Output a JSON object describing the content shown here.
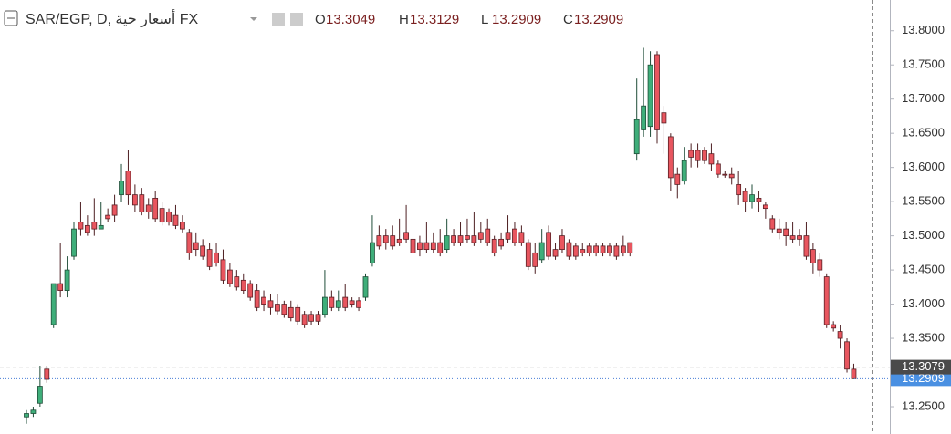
{
  "chart_data": {
    "type": "candlestick",
    "title": "SAR/EGP, D, أسعار حية FX",
    "legend": [
      {
        "name": "O",
        "value": 13.3049
      },
      {
        "name": "H",
        "value": 13.3129
      },
      {
        "name": "L",
        "value": 13.2909
      },
      {
        "name": "C",
        "value": 13.2909
      }
    ],
    "up_color": "#3fae7a",
    "down_color": "#e8565f",
    "ylim": [
      13.21,
      13.845
    ],
    "yticks": [
      {
        "value": 13.25,
        "label": "13.2500"
      },
      {
        "value": 13.3,
        "label": "13.3000"
      },
      {
        "value": 13.35,
        "label": "13.3500"
      },
      {
        "value": 13.4,
        "label": "13.4000"
      },
      {
        "value": 13.45,
        "label": "13.4500"
      },
      {
        "value": 13.5,
        "label": "13.5000"
      },
      {
        "value": 13.55,
        "label": "13.5500"
      },
      {
        "value": 13.6,
        "label": "13.6000"
      },
      {
        "value": 13.65,
        "label": "13.6500"
      },
      {
        "value": 13.7,
        "label": "13.7000"
      },
      {
        "value": 13.75,
        "label": "13.7500"
      },
      {
        "value": 13.8,
        "label": "13.8000"
      }
    ],
    "crosshair": {
      "value": 13.3079
    },
    "last_price": {
      "value": 13.2909
    },
    "ohlc": [
      [
        13.235,
        13.245,
        13.225,
        13.24
      ],
      [
        13.24,
        13.25,
        13.235,
        13.245
      ],
      [
        13.255,
        13.31,
        13.25,
        13.28
      ],
      [
        13.305,
        13.31,
        13.285,
        13.29
      ],
      [
        13.37,
        13.43,
        13.365,
        13.43
      ],
      [
        13.43,
        13.49,
        13.41,
        13.42
      ],
      [
        13.42,
        13.47,
        13.41,
        13.45
      ],
      [
        13.47,
        13.52,
        13.465,
        13.51
      ],
      [
        13.52,
        13.55,
        13.5,
        13.51
      ],
      [
        13.515,
        13.53,
        13.5,
        13.505
      ],
      [
        13.52,
        13.555,
        13.5,
        13.51
      ],
      [
        13.51,
        13.55,
        13.51,
        13.515
      ],
      [
        13.53,
        13.54,
        13.52,
        13.525
      ],
      [
        13.545,
        13.56,
        13.52,
        13.53
      ],
      [
        13.56,
        13.605,
        13.55,
        13.58
      ],
      [
        13.595,
        13.625,
        13.545,
        13.56
      ],
      [
        13.56,
        13.575,
        13.535,
        13.545
      ],
      [
        13.56,
        13.57,
        13.53,
        13.535
      ],
      [
        13.545,
        13.555,
        13.525,
        13.535
      ],
      [
        13.555,
        13.565,
        13.52,
        13.525
      ],
      [
        13.54,
        13.55,
        13.515,
        13.52
      ],
      [
        13.535,
        13.54,
        13.515,
        13.52
      ],
      [
        13.53,
        13.545,
        13.51,
        13.515
      ],
      [
        13.52,
        13.53,
        13.505,
        13.51
      ],
      [
        13.505,
        13.51,
        13.465,
        13.475
      ],
      [
        13.49,
        13.505,
        13.47,
        13.48
      ],
      [
        13.485,
        13.495,
        13.465,
        13.47
      ],
      [
        13.48,
        13.49,
        13.45,
        13.455
      ],
      [
        13.475,
        13.49,
        13.455,
        13.46
      ],
      [
        13.465,
        13.48,
        13.43,
        13.435
      ],
      [
        13.45,
        13.46,
        13.425,
        13.43
      ],
      [
        13.44,
        13.45,
        13.42,
        13.425
      ],
      [
        13.435,
        13.445,
        13.415,
        13.42
      ],
      [
        13.43,
        13.435,
        13.405,
        13.41
      ],
      [
        13.42,
        13.43,
        13.39,
        13.395
      ],
      [
        13.41,
        13.42,
        13.39,
        13.4
      ],
      [
        13.405,
        13.415,
        13.385,
        13.395
      ],
      [
        13.4,
        13.415,
        13.385,
        13.39
      ],
      [
        13.4,
        13.405,
        13.38,
        13.385
      ],
      [
        13.395,
        13.405,
        13.375,
        13.38
      ],
      [
        13.395,
        13.4,
        13.37,
        13.375
      ],
      [
        13.385,
        13.39,
        13.365,
        13.37
      ],
      [
        13.385,
        13.39,
        13.37,
        13.375
      ],
      [
        13.385,
        13.39,
        13.37,
        13.375
      ],
      [
        13.385,
        13.45,
        13.38,
        13.41
      ],
      [
        13.41,
        13.42,
        13.39,
        13.395
      ],
      [
        13.395,
        13.42,
        13.39,
        13.405
      ],
      [
        13.41,
        13.43,
        13.39,
        13.395
      ],
      [
        13.405,
        13.41,
        13.395,
        13.4
      ],
      [
        13.405,
        13.41,
        13.39,
        13.395
      ],
      [
        13.41,
        13.445,
        13.405,
        13.44
      ],
      [
        13.46,
        13.53,
        13.455,
        13.49
      ],
      [
        13.5,
        13.515,
        13.48,
        13.485
      ],
      [
        13.5,
        13.51,
        13.48,
        13.49
      ],
      [
        13.5,
        13.515,
        13.48,
        13.485
      ],
      [
        13.495,
        13.525,
        13.485,
        13.49
      ],
      [
        13.505,
        13.545,
        13.49,
        13.495
      ],
      [
        13.495,
        13.505,
        13.47,
        13.475
      ],
      [
        13.49,
        13.5,
        13.47,
        13.48
      ],
      [
        13.49,
        13.52,
        13.475,
        13.48
      ],
      [
        13.49,
        13.505,
        13.475,
        13.48
      ],
      [
        13.49,
        13.51,
        13.47,
        13.475
      ],
      [
        13.48,
        13.525,
        13.475,
        13.5
      ],
      [
        13.5,
        13.51,
        13.485,
        13.49
      ],
      [
        13.5,
        13.52,
        13.485,
        13.49
      ],
      [
        13.5,
        13.525,
        13.49,
        13.495
      ],
      [
        13.5,
        13.535,
        13.485,
        13.49
      ],
      [
        13.505,
        13.52,
        13.49,
        13.495
      ],
      [
        13.51,
        13.525,
        13.485,
        13.49
      ],
      [
        13.495,
        13.5,
        13.47,
        13.475
      ],
      [
        13.495,
        13.505,
        13.48,
        13.485
      ],
      [
        13.505,
        13.53,
        13.49,
        13.495
      ],
      [
        13.51,
        13.52,
        13.485,
        13.49
      ],
      [
        13.505,
        13.515,
        13.485,
        13.49
      ],
      [
        13.49,
        13.495,
        13.45,
        13.455
      ],
      [
        13.475,
        13.49,
        13.445,
        13.455
      ],
      [
        13.465,
        13.51,
        13.46,
        13.49
      ],
      [
        13.505,
        13.515,
        13.465,
        13.47
      ],
      [
        13.48,
        13.49,
        13.465,
        13.47
      ],
      [
        13.5,
        13.51,
        13.475,
        13.48
      ],
      [
        13.49,
        13.495,
        13.465,
        13.47
      ],
      [
        13.485,
        13.49,
        13.465,
        13.47
      ],
      [
        13.48,
        13.49,
        13.47,
        13.475
      ],
      [
        13.485,
        13.49,
        13.47,
        13.475
      ],
      [
        13.485,
        13.49,
        13.47,
        13.475
      ],
      [
        13.485,
        13.49,
        13.47,
        13.475
      ],
      [
        13.485,
        13.49,
        13.47,
        13.475
      ],
      [
        13.485,
        13.49,
        13.465,
        13.47
      ],
      [
        13.485,
        13.5,
        13.47,
        13.475
      ],
      [
        13.49,
        13.49,
        13.47,
        13.475
      ],
      [
        13.62,
        13.73,
        13.61,
        13.67
      ],
      [
        13.655,
        13.775,
        13.645,
        13.69
      ],
      [
        13.66,
        13.77,
        13.645,
        13.75
      ],
      [
        13.765,
        13.77,
        13.635,
        13.655
      ],
      [
        13.68,
        13.69,
        13.62,
        13.665
      ],
      [
        13.645,
        13.65,
        13.565,
        13.585
      ],
      [
        13.59,
        13.6,
        13.555,
        13.575
      ],
      [
        13.58,
        13.63,
        13.575,
        13.61
      ],
      [
        13.625,
        13.635,
        13.6,
        13.615
      ],
      [
        13.625,
        13.635,
        13.6,
        13.61
      ],
      [
        13.625,
        13.63,
        13.605,
        13.61
      ],
      [
        13.62,
        13.635,
        13.595,
        13.605
      ],
      [
        13.605,
        13.61,
        13.585,
        13.59
      ],
      [
        13.59,
        13.595,
        13.585,
        13.589
      ],
      [
        13.59,
        13.6,
        13.575,
        13.585
      ],
      [
        13.575,
        13.595,
        13.545,
        13.56
      ],
      [
        13.565,
        13.57,
        13.535,
        13.55
      ],
      [
        13.55,
        13.575,
        13.54,
        13.56
      ],
      [
        13.555,
        13.565,
        13.535,
        13.55
      ],
      [
        13.545,
        13.55,
        13.525,
        13.54
      ],
      [
        13.525,
        13.53,
        13.505,
        13.51
      ],
      [
        13.51,
        13.525,
        13.495,
        13.505
      ],
      [
        13.51,
        13.52,
        13.485,
        13.5
      ],
      [
        13.5,
        13.52,
        13.49,
        13.495
      ],
      [
        13.5,
        13.51,
        13.485,
        13.495
      ],
      [
        13.5,
        13.52,
        13.465,
        13.47
      ],
      [
        13.48,
        13.49,
        13.445,
        13.46
      ],
      [
        13.465,
        13.475,
        13.44,
        13.45
      ],
      [
        13.44,
        13.445,
        13.365,
        13.37
      ],
      [
        13.37,
        13.375,
        13.36,
        13.365
      ],
      [
        13.36,
        13.37,
        13.335,
        13.35
      ],
      [
        13.345,
        13.35,
        13.3,
        13.305
      ],
      [
        13.3049,
        13.3129,
        13.2909,
        13.2909
      ]
    ]
  }
}
